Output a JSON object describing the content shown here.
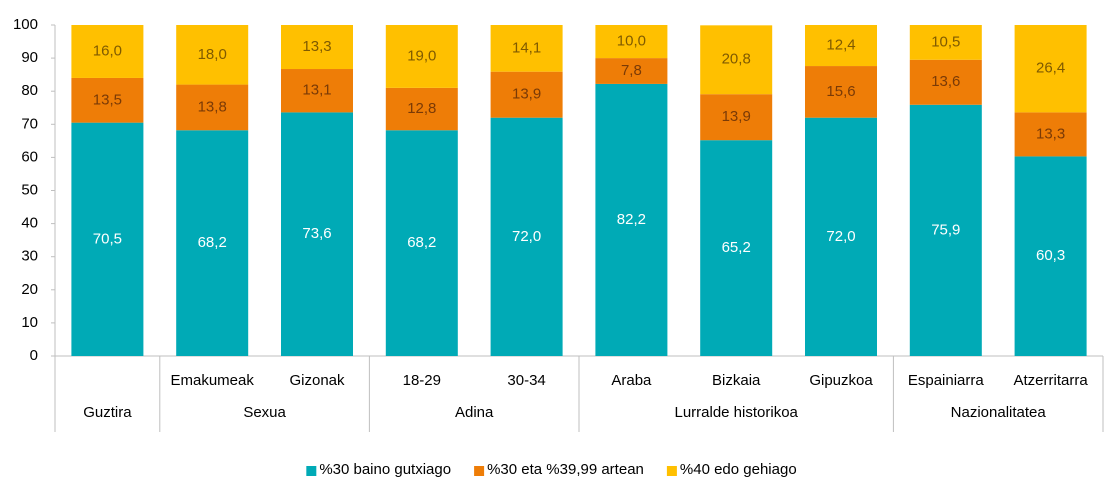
{
  "chart_data": {
    "type": "stacked_bar",
    "categories": [
      null,
      "Emakumeak",
      "Gizonak",
      "18-29",
      "30-34",
      "Araba",
      "Bizkaia",
      "Gipuzkoa",
      "Espainiarra",
      "Atzerritarra"
    ],
    "category_groups": [
      "Guztira",
      "Sexua",
      "Sexua",
      "Adina",
      "Adina",
      "Lurralde historikoa",
      "Lurralde historikoa",
      "Lurralde historikoa",
      "Nazionalitatea",
      "Nazionalitatea"
    ],
    "series": [
      {
        "name": "%30 baino gutxiago",
        "color": "#00aab6",
        "label_color": "#ffffff",
        "values": [
          70.5,
          68.2,
          73.6,
          68.2,
          72.0,
          82.2,
          65.2,
          72.0,
          75.9,
          60.3
        ],
        "value_labels": [
          "70,5",
          "68,2",
          "73,6",
          "68,2",
          "72,0",
          "82,2",
          "65,2",
          "72,0",
          "75,9",
          "60,3"
        ]
      },
      {
        "name": "%30 eta %39,99 artean",
        "color": "#ee7d07",
        "label_color": "#7a3a06",
        "values": [
          13.5,
          13.8,
          13.1,
          12.8,
          13.9,
          7.8,
          13.9,
          15.6,
          13.6,
          13.3
        ],
        "value_labels": [
          "13,5",
          "13,8",
          "13,1",
          "12,8",
          "13,9",
          "7,8",
          "13,9",
          "15,6",
          "13,6",
          "13,3"
        ]
      },
      {
        "name": "%40 edo gehiago",
        "color": "#ffc000",
        "label_color": "#7f5a00",
        "values": [
          16.0,
          18.0,
          13.3,
          19.0,
          14.1,
          10.0,
          20.8,
          12.4,
          10.5,
          26.4
        ],
        "value_labels": [
          "16,0",
          "18,0",
          "13,3",
          "19,0",
          "14,1",
          "10,0",
          "20,8",
          "12,4",
          "10,5",
          "26,4"
        ]
      }
    ],
    "ylim": [
      0,
      100
    ],
    "yticks": [
      0,
      10,
      20,
      30,
      40,
      50,
      60,
      70,
      80,
      90,
      100
    ],
    "grid": false,
    "legend": "bottom"
  }
}
